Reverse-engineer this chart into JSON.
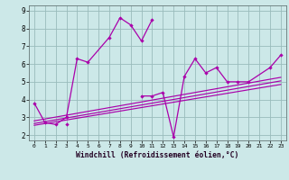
{
  "title": "",
  "xlabel": "Windchill (Refroidissement éolien,°C)",
  "bg_color": "#cce8e8",
  "line_color": "#aa00aa",
  "grid_color": "#99bbbb",
  "xlim": [
    -0.5,
    23.5
  ],
  "ylim": [
    1.7,
    9.3
  ],
  "xticks": [
    0,
    1,
    2,
    3,
    4,
    5,
    6,
    7,
    8,
    9,
    10,
    11,
    12,
    13,
    14,
    15,
    16,
    17,
    18,
    19,
    20,
    21,
    22,
    23
  ],
  "yticks": [
    2,
    3,
    4,
    5,
    6,
    7,
    8,
    9
  ],
  "series1_x": [
    0,
    1,
    2,
    3,
    4,
    5,
    7,
    8,
    9,
    10,
    11
  ],
  "series1_y": [
    3.8,
    2.7,
    2.6,
    3.0,
    6.3,
    6.1,
    7.5,
    8.6,
    8.2,
    7.3,
    8.5
  ],
  "series2_x": [
    3,
    10,
    11,
    12,
    13,
    14,
    15,
    16,
    17,
    18,
    19,
    20,
    22,
    23
  ],
  "series2_y": [
    2.6,
    4.2,
    4.2,
    4.4,
    1.9,
    5.3,
    6.3,
    5.5,
    5.8,
    5.0,
    5.0,
    5.0,
    5.8,
    6.5
  ],
  "trend1_x": [
    0,
    23
  ],
  "trend1_y": [
    2.55,
    4.85
  ],
  "trend2_x": [
    0,
    23
  ],
  "trend2_y": [
    2.65,
    5.05
  ],
  "trend3_x": [
    0,
    23
  ],
  "trend3_y": [
    2.8,
    5.25
  ]
}
